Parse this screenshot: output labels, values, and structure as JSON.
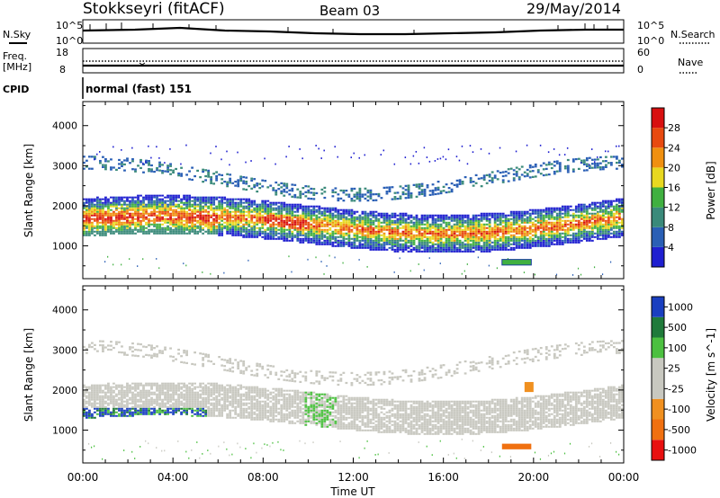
{
  "header": {
    "station": "Stokkseyri (fitACF)",
    "beam": "Beam 03",
    "date": "29/May/2014"
  },
  "status_panels": {
    "nsky_label": "N.Sky",
    "nsky_ticks": [
      "10^5",
      "10^0"
    ],
    "nsearch_label": "N.Search",
    "nsearch_ticks": [
      "10^5",
      "10^0"
    ],
    "freq_label": "Freq.",
    "freq_unit": "[MHz]",
    "freq_ticks": [
      "18",
      "8"
    ],
    "nave_label": "Nave",
    "nave_ticks": [
      "60",
      "0"
    ],
    "cpid_label": "CPID",
    "cpid_value": "normal (fast) 151"
  },
  "chart_data": [
    {
      "type": "heatmap",
      "name": "power",
      "ylabel": "Slant Range [km]",
      "ylim": [
        180,
        4600
      ],
      "yticks": [
        "1000",
        "2000",
        "3000",
        "4000"
      ],
      "colorbar_label": "Power [dB]",
      "colorbar_ticks": [
        "4",
        "8",
        "12",
        "16",
        "20",
        "24",
        "28"
      ],
      "colorbar_range": [
        0,
        32
      ],
      "colors": [
        "#1f1fd0",
        "#2a5fb5",
        "#3a8a7a",
        "#40b040",
        "#e8d820",
        "#f09010",
        "#e84a10",
        "#d81010"
      ],
      "features": [
        {
          "desc": "main band",
          "x_hours": [
            0,
            24
          ],
          "range_km": [
            1200,
            1900
          ],
          "level": "green-orange"
        },
        {
          "desc": "strong echoes",
          "x_hours": [
            0.5,
            6
          ],
          "range_km": [
            900,
            1600
          ],
          "level": "orange-red"
        },
        {
          "desc": "upper scatter",
          "x_hours": [
            0,
            24
          ],
          "range_km": [
            2400,
            3500
          ],
          "level": "blue"
        },
        {
          "desc": "ground/low patch",
          "x_hours": [
            18.5,
            20
          ],
          "range_km": [
            550,
            650
          ],
          "level": "green"
        }
      ]
    },
    {
      "type": "heatmap",
      "name": "velocity",
      "xlabel": "Time UT",
      "ylabel": "Slant Range [km]",
      "ylim": [
        180,
        4600
      ],
      "yticks": [
        "1000",
        "2000",
        "3000",
        "4000"
      ],
      "xlim": [
        0,
        24
      ],
      "xticks": [
        "00:00",
        "04:00",
        "08:00",
        "12:00",
        "16:00",
        "20:00",
        "00:00"
      ],
      "colorbar_label": "Velocity [m s^-1]",
      "colorbar_ticks": [
        "1000",
        "500",
        "100",
        "25",
        "-25",
        "-100",
        "-500",
        "-1000"
      ],
      "colors": [
        "#1a3fc0",
        "#1f7a3a",
        "#4cc040",
        "#c8c8c0",
        "#c8c8c0",
        "#f09020",
        "#f07010",
        "#e81010"
      ],
      "features": [
        {
          "desc": "ground scatter band",
          "x_hours": [
            2,
            24
          ],
          "range_km": [
            1300,
            1900
          ],
          "level": "grey"
        },
        {
          "desc": "positive flow",
          "x_hours": [
            0.5,
            5
          ],
          "range_km": [
            900,
            1500
          ],
          "level": "blue-green"
        },
        {
          "desc": "negative patch",
          "x_hours": [
            18.5,
            20
          ],
          "range_km": [
            550,
            650
          ],
          "level": "orange"
        }
      ]
    }
  ]
}
